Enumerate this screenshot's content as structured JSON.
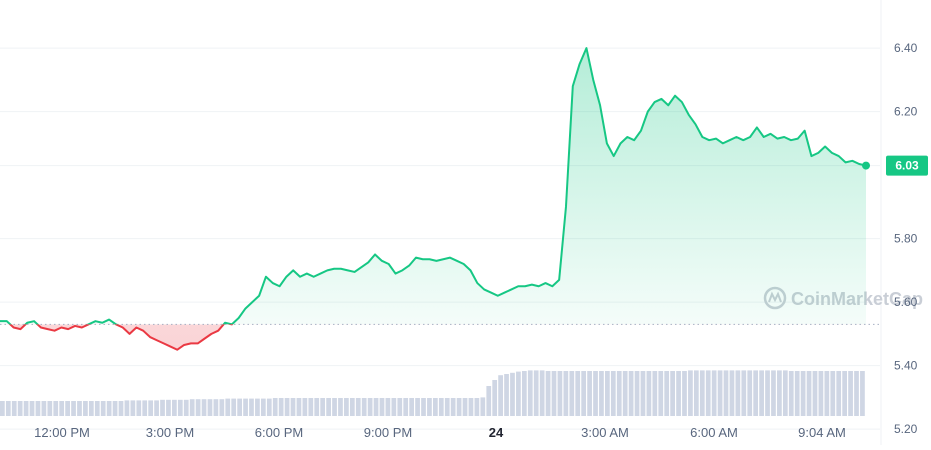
{
  "chart_data": {
    "type": "area",
    "y_axis": {
      "ticks": [
        "6.40",
        "6.20",
        "6.03",
        "5.80",
        "5.60",
        "5.40",
        "5.20"
      ],
      "range": [
        5.15,
        6.52
      ]
    },
    "x_axis": {
      "ticks": [
        "12:00 PM",
        "3:00 PM",
        "6:00 PM",
        "9:00 PM",
        "24",
        "3:00 AM",
        "6:00 AM",
        "9:04 AM"
      ],
      "bold_tick": "24"
    },
    "baseline": 5.53,
    "current_price": 6.03,
    "current_label": "6.03",
    "colors": {
      "up": "#16c784",
      "down": "#ea3943",
      "grid": "#eff2f5",
      "baseline": "#a6b0c3",
      "volume": "#cfd6e4"
    },
    "watermark": "CoinMarketCap",
    "series": [
      {
        "values": [
          5.54,
          5.54,
          5.52,
          5.515,
          5.535,
          5.54,
          5.52,
          5.515,
          5.51,
          5.52,
          5.515,
          5.525,
          5.52,
          5.53,
          5.54,
          5.535,
          5.545,
          5.53,
          5.52,
          5.5,
          5.52,
          5.51,
          5.49,
          5.48,
          5.47,
          5.46,
          5.45,
          5.465,
          5.47,
          5.47,
          5.485,
          5.5,
          5.51,
          5.535,
          5.53,
          5.55,
          5.58,
          5.6,
          5.62,
          5.68,
          5.66,
          5.65,
          5.68,
          5.7,
          5.68,
          5.69,
          5.68,
          5.69,
          5.7,
          5.705,
          5.705,
          5.7,
          5.695,
          5.71,
          5.725,
          5.75,
          5.73,
          5.72,
          5.69,
          5.7,
          5.715,
          5.74,
          5.735,
          5.735,
          5.73,
          5.735,
          5.74,
          5.73,
          5.72,
          5.7,
          5.66,
          5.64,
          5.63,
          5.62,
          5.63,
          5.64,
          5.65,
          5.65,
          5.655,
          5.65,
          5.66,
          5.65,
          5.67,
          5.9,
          6.28,
          6.35,
          6.4,
          6.3,
          6.22,
          6.1,
          6.06,
          6.1,
          6.12,
          6.11,
          6.14,
          6.2,
          6.23,
          6.24,
          6.22,
          6.25,
          6.23,
          6.19,
          6.16,
          6.12,
          6.11,
          6.115,
          6.1,
          6.11,
          6.12,
          6.11,
          6.12,
          6.15,
          6.12,
          6.13,
          6.115,
          6.12,
          6.11,
          6.115,
          6.14,
          6.06,
          6.07,
          6.09,
          6.07,
          6.06,
          6.04,
          6.045,
          6.035,
          6.03
        ]
      }
    ],
    "volume_bars": [
      0.25,
      0.25,
      0.25,
      0.25,
      0.25,
      0.25,
      0.25,
      0.25,
      0.25,
      0.25,
      0.25,
      0.25,
      0.25,
      0.25,
      0.25,
      0.25,
      0.25,
      0.25,
      0.25,
      0.25,
      0.25,
      0.26,
      0.26,
      0.26,
      0.26,
      0.26,
      0.26,
      0.27,
      0.27,
      0.27,
      0.27,
      0.27,
      0.28,
      0.28,
      0.28,
      0.28,
      0.28,
      0.28,
      0.29,
      0.29,
      0.29,
      0.29,
      0.29,
      0.29,
      0.29,
      0.29,
      0.3,
      0.3,
      0.3,
      0.3,
      0.3,
      0.3,
      0.3,
      0.3,
      0.3,
      0.3,
      0.3,
      0.3,
      0.3,
      0.3,
      0.3,
      0.3,
      0.3,
      0.3,
      0.3,
      0.3,
      0.3,
      0.3,
      0.3,
      0.3,
      0.3,
      0.3,
      0.3,
      0.3,
      0.3,
      0.3,
      0.3,
      0.3,
      0.3,
      0.3,
      0.3,
      0.31,
      0.5,
      0.6,
      0.68,
      0.7,
      0.72,
      0.74,
      0.75,
      0.76,
      0.76,
      0.76,
      0.75,
      0.75,
      0.75,
      0.75,
      0.75,
      0.75,
      0.75,
      0.75,
      0.75,
      0.75,
      0.75,
      0.75,
      0.75,
      0.75,
      0.75,
      0.75,
      0.75,
      0.75,
      0.75,
      0.75,
      0.75,
      0.75,
      0.75,
      0.75,
      0.76,
      0.76,
      0.76,
      0.76,
      0.76,
      0.76,
      0.76,
      0.76,
      0.76,
      0.76,
      0.76,
      0.76,
      0.76,
      0.76,
      0.76,
      0.76,
      0.76,
      0.75,
      0.75,
      0.75,
      0.75,
      0.75,
      0.75,
      0.75,
      0.75,
      0.75,
      0.75,
      0.75,
      0.75,
      0.75
    ]
  }
}
